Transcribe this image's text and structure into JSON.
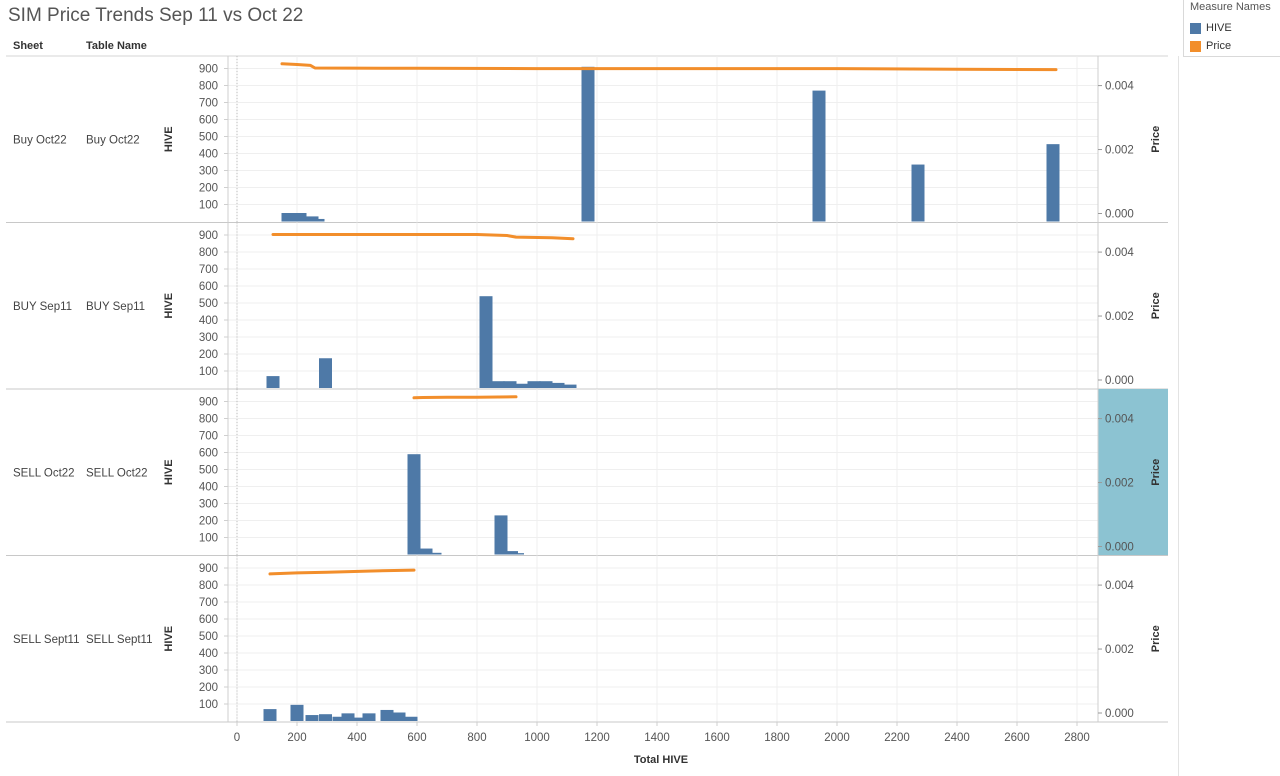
{
  "title": "SIM Price Trends Sep 11 vs Oct 22",
  "headers": {
    "sheet": "Sheet",
    "table_name": "Table Name"
  },
  "legend": {
    "title": "Measure Names",
    "items": [
      {
        "label": "HIVE",
        "color": "#4e79a7"
      },
      {
        "label": "Price",
        "color": "#f28e2b"
      }
    ]
  },
  "colors": {
    "hive": "#4e79a7",
    "price": "#f28e2b",
    "highlight": "#8cc3d2"
  },
  "chart_data": {
    "type": "bar",
    "xlabel": "Total HIVE",
    "ylabel_left": "HIVE",
    "ylabel_right": "Price",
    "xlim": [
      -30,
      2870
    ],
    "x_ticks": [
      0,
      200,
      400,
      600,
      800,
      1000,
      1200,
      1400,
      1600,
      1800,
      2000,
      2200,
      2400,
      2600,
      2800
    ],
    "y_left_lim": [
      0,
      950
    ],
    "y_left_ticks": [
      100,
      200,
      300,
      400,
      500,
      600,
      700,
      800,
      900
    ],
    "y_right_lim": [
      0,
      0.0048
    ],
    "y_right_ticks": [
      0.0,
      0.002,
      0.004
    ],
    "y_right_tick_labels": [
      "0.000",
      "0.002",
      "0.004"
    ],
    "grid": true,
    "legend_position": "top-right",
    "panels": [
      {
        "sheet": "Buy Oct22",
        "table_name": "Buy Oct22",
        "highlighted": false,
        "bars": [
          {
            "x": 170,
            "y": 50
          },
          {
            "x": 210,
            "y": 50
          },
          {
            "x": 250,
            "y": 30
          },
          {
            "x": 270,
            "y": 15
          },
          {
            "x": 1170,
            "y": 910
          },
          {
            "x": 1940,
            "y": 770
          },
          {
            "x": 2270,
            "y": 335
          },
          {
            "x": 2720,
            "y": 455
          }
        ],
        "price": [
          [
            150,
            0.00468
          ],
          [
            200,
            0.00466
          ],
          [
            245,
            0.00463
          ],
          [
            260,
            0.00455
          ],
          [
            600,
            0.00454
          ],
          [
            1000,
            0.00453
          ],
          [
            2000,
            0.00453
          ],
          [
            2400,
            0.00451
          ],
          [
            2730,
            0.0045
          ]
        ]
      },
      {
        "sheet": "BUY Sep11",
        "table_name": "BUY Sep11",
        "highlighted": false,
        "bars": [
          {
            "x": 120,
            "y": 70
          },
          {
            "x": 295,
            "y": 175
          },
          {
            "x": 830,
            "y": 540
          },
          {
            "x": 870,
            "y": 40
          },
          {
            "x": 910,
            "y": 40
          },
          {
            "x": 950,
            "y": 25
          },
          {
            "x": 990,
            "y": 40
          },
          {
            "x": 1030,
            "y": 40
          },
          {
            "x": 1070,
            "y": 30
          },
          {
            "x": 1110,
            "y": 20
          }
        ],
        "price": [
          [
            120,
            0.00455
          ],
          [
            500,
            0.00455
          ],
          [
            800,
            0.00455
          ],
          [
            900,
            0.00452
          ],
          [
            930,
            0.00447
          ],
          [
            1050,
            0.00445
          ],
          [
            1120,
            0.00442
          ]
        ]
      },
      {
        "sheet": "SELL Oct22",
        "table_name": "SELL Oct22",
        "highlighted": true,
        "bars": [
          {
            "x": 590,
            "y": 590
          },
          {
            "x": 630,
            "y": 35
          },
          {
            "x": 660,
            "y": 10
          },
          {
            "x": 880,
            "y": 230
          },
          {
            "x": 915,
            "y": 20
          },
          {
            "x": 935,
            "y": 8
          }
        ],
        "price": [
          [
            590,
            0.00465
          ],
          [
            620,
            0.00466
          ],
          [
            700,
            0.00467
          ],
          [
            800,
            0.00467
          ],
          [
            930,
            0.00468
          ]
        ]
      },
      {
        "sheet": "SELL Sept11",
        "table_name": "SELL Sept11",
        "highlighted": false,
        "bars": [
          {
            "x": 110,
            "y": 70
          },
          {
            "x": 200,
            "y": 95
          },
          {
            "x": 250,
            "y": 35
          },
          {
            "x": 295,
            "y": 40
          },
          {
            "x": 340,
            "y": 25
          },
          {
            "x": 370,
            "y": 45
          },
          {
            "x": 400,
            "y": 20
          },
          {
            "x": 440,
            "y": 45
          },
          {
            "x": 500,
            "y": 65
          },
          {
            "x": 540,
            "y": 50
          },
          {
            "x": 580,
            "y": 25
          }
        ],
        "price": [
          [
            110,
            0.00435
          ],
          [
            200,
            0.00438
          ],
          [
            300,
            0.0044
          ],
          [
            450,
            0.00444
          ],
          [
            590,
            0.00447
          ]
        ]
      }
    ]
  }
}
